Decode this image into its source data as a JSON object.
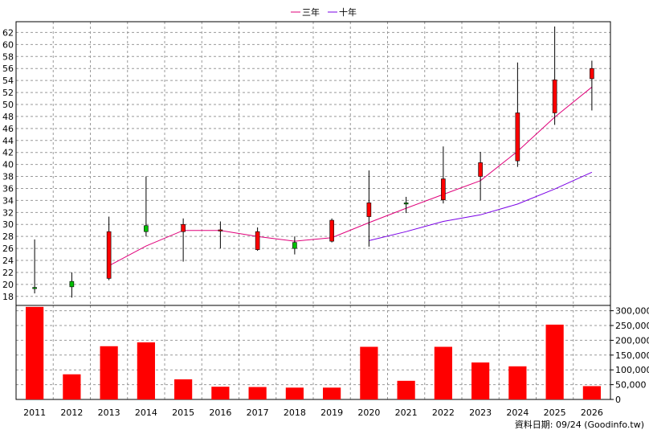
{
  "chart_data": {
    "type": "candlestick",
    "title": "",
    "xlabel": "",
    "ylabel": "",
    "categories": [
      "2011",
      "2012",
      "2013",
      "2014",
      "2015",
      "2016",
      "2017",
      "2018",
      "2019",
      "2020",
      "2021",
      "2022",
      "2023",
      "2024",
      "2025",
      "2026"
    ],
    "price_axis": {
      "ylim": [
        16.5,
        63.8
      ],
      "ticks": [
        18,
        20,
        22,
        24,
        26,
        28,
        30,
        32,
        34,
        36,
        38,
        40,
        42,
        44,
        46,
        48,
        50,
        52,
        54,
        56,
        58,
        60,
        62
      ]
    },
    "volume_axis": {
      "ylim": [
        0,
        318000
      ],
      "ticks": [
        0,
        50000,
        100000,
        150000,
        200000,
        250000,
        300000
      ],
      "tick_labels": [
        "0",
        "50,000",
        "100,000",
        "150,000",
        "200,000",
        "250,000",
        "300,000"
      ]
    },
    "candles": [
      {
        "year": "2011",
        "open": 19.5,
        "high": 27.5,
        "low": 18.5,
        "close": 19.3
      },
      {
        "year": "2012",
        "open": 20.5,
        "high": 22.0,
        "low": 17.8,
        "close": 19.6
      },
      {
        "year": "2013",
        "open": 21.0,
        "high": 31.3,
        "low": 20.7,
        "close": 28.8
      },
      {
        "year": "2014",
        "open": 29.8,
        "high": 38.0,
        "low": 28.0,
        "close": 28.8
      },
      {
        "year": "2015",
        "open": 28.8,
        "high": 31.0,
        "low": 23.8,
        "close": 30.0
      },
      {
        "year": "2016",
        "open": 29.0,
        "high": 30.5,
        "low": 26.0,
        "close": 29.1
      },
      {
        "year": "2017",
        "open": 25.8,
        "high": 29.5,
        "low": 25.6,
        "close": 28.8
      },
      {
        "year": "2018",
        "open": 27.0,
        "high": 28.0,
        "low": 25.0,
        "close": 26.0
      },
      {
        "year": "2019",
        "open": 27.2,
        "high": 31.0,
        "low": 27.0,
        "close": 30.7
      },
      {
        "year": "2020",
        "open": 31.3,
        "high": 39.0,
        "low": 26.3,
        "close": 33.6
      },
      {
        "year": "2021",
        "open": 33.6,
        "high": 34.6,
        "low": 31.9,
        "close": 33.5
      },
      {
        "year": "2022",
        "open": 34.1,
        "high": 43.0,
        "low": 33.5,
        "close": 37.6
      },
      {
        "year": "2023",
        "open": 38.0,
        "high": 42.1,
        "low": 34.0,
        "close": 40.3
      },
      {
        "year": "2024",
        "open": 40.6,
        "high": 57.0,
        "low": 39.6,
        "close": 48.6
      },
      {
        "year": "2025",
        "open": 48.6,
        "high": 63.0,
        "low": 46.6,
        "close": 54.1
      },
      {
        "year": "2026",
        "open": 54.3,
        "high": 57.3,
        "low": 49.0,
        "close": 56.0
      }
    ],
    "series": [
      {
        "name": "三年",
        "color": "#e0007a",
        "values": [
          null,
          null,
          23.1,
          26.4,
          29.0,
          29.0,
          28.0,
          27.2,
          27.8,
          30.3,
          32.7,
          35.0,
          37.3,
          42.2,
          47.9,
          52.9
        ]
      },
      {
        "name": "十年",
        "color": "#7a00e6",
        "values": [
          null,
          null,
          null,
          null,
          null,
          null,
          null,
          null,
          null,
          27.3,
          28.8,
          30.5,
          31.6,
          33.4,
          35.9,
          38.7
        ]
      }
    ],
    "volume": {
      "color": "#ff0000",
      "values": [
        313000,
        85000,
        180000,
        193000,
        68000,
        43000,
        42000,
        40000,
        40000,
        178000,
        63000,
        178000,
        125000,
        112000,
        253000,
        45000
      ]
    },
    "colors": {
      "up": "#ff0000",
      "down": "#00c000",
      "wick": "#000000",
      "grid": "#999999"
    },
    "grid": true,
    "legend_position": "top-center"
  },
  "footer": {
    "source": "資料日期: 09/24  (Goodinfo.tw)"
  }
}
